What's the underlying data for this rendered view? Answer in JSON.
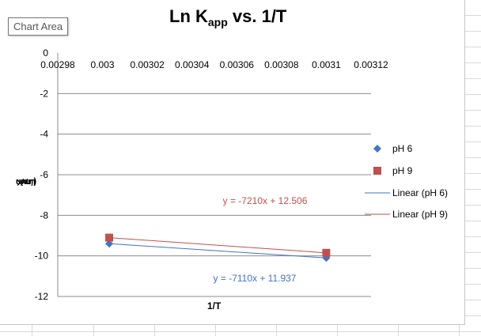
{
  "tooltip": "Chart Area",
  "chart_data": {
    "type": "scatter",
    "title": {
      "main": "Ln K",
      "sub": "app",
      "rest": " vs. 1/T"
    },
    "ylabel": {
      "main": "Ln K",
      "sub": "app",
      "rest": " (/min"
    },
    "xlabel": "1/T",
    "xlim": [
      0.00298,
      0.00312
    ],
    "ylim": [
      -12,
      0
    ],
    "x_ticks": [
      "0.00298",
      "0.003",
      "0.00302",
      "0.00304",
      "0.00306",
      "0.00308",
      "0.0031",
      "0.00312"
    ],
    "y_ticks": [
      "0",
      "-2",
      "-4",
      "-6",
      "-8",
      "-10",
      "-12"
    ],
    "grid": "horizontal",
    "legend_position": "right",
    "series": [
      {
        "name": "pH 6",
        "marker": "diamond",
        "color": "#4472c4",
        "x": [
          0.003003,
          0.0031
        ],
        "y": [
          -9.4,
          -10.1
        ]
      },
      {
        "name": "pH 9",
        "marker": "square",
        "color": "#c0504d",
        "x": [
          0.003003,
          0.0031
        ],
        "y": [
          -9.1,
          -9.85
        ]
      }
    ],
    "trendlines": [
      {
        "name": "Linear (pH 6)",
        "color": "#4472c4",
        "equation": "y = -7110x + 11.937",
        "x": [
          0.003003,
          0.0031
        ],
        "y": [
          -9.4,
          -10.1
        ]
      },
      {
        "name": "Linear (pH 9)",
        "color": "#c0504d",
        "equation": "y = -7210x + 12.506",
        "x": [
          0.003003,
          0.0031
        ],
        "y": [
          -9.1,
          -9.85
        ]
      }
    ]
  }
}
